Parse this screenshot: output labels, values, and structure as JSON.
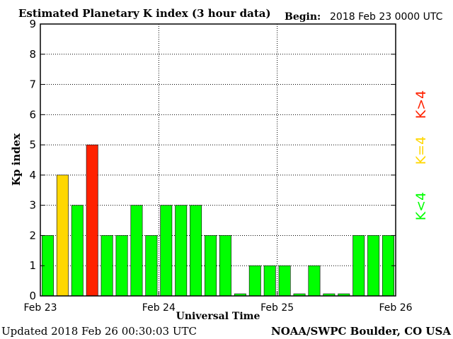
{
  "header": {
    "title": "Estimated Planetary K index (3 hour data)",
    "begin_label": "Begin:",
    "begin_value": "2018 Feb 23 0000 UTC"
  },
  "footer": {
    "updated": "Updated 2018 Feb 26 00:30:03 UTC",
    "credit": "NOAA/SWPC Boulder, CO USA"
  },
  "legend": {
    "high": "K>4",
    "equal": "K=4",
    "low": "K<4"
  },
  "colors": {
    "low": "#00ff00",
    "equal": "#ffd700",
    "high": "#ff2200",
    "frame": "#000000",
    "grid": "#000000"
  },
  "chart_data": {
    "type": "bar",
    "ylabel": "Kp index",
    "xlabel": "Universal Time",
    "ylim": [
      0,
      9
    ],
    "yticks": [
      "0",
      "1",
      "2",
      "3",
      "4",
      "5",
      "6",
      "7",
      "8",
      "9"
    ],
    "xlim": [
      0,
      72
    ],
    "xticks": [
      {
        "label": "Feb 23",
        "hours": 0
      },
      {
        "label": "Feb 24",
        "hours": 24
      },
      {
        "label": "Feb 25",
        "hours": 48
      },
      {
        "label": "Feb 26",
        "hours": 72
      }
    ],
    "interval_hours": 3,
    "values": [
      2,
      4,
      3,
      5,
      2,
      2,
      3,
      2,
      3,
      3,
      3,
      2,
      2,
      0,
      1,
      1,
      1,
      0,
      1,
      0,
      0,
      2,
      2,
      2
    ],
    "grid": true
  }
}
